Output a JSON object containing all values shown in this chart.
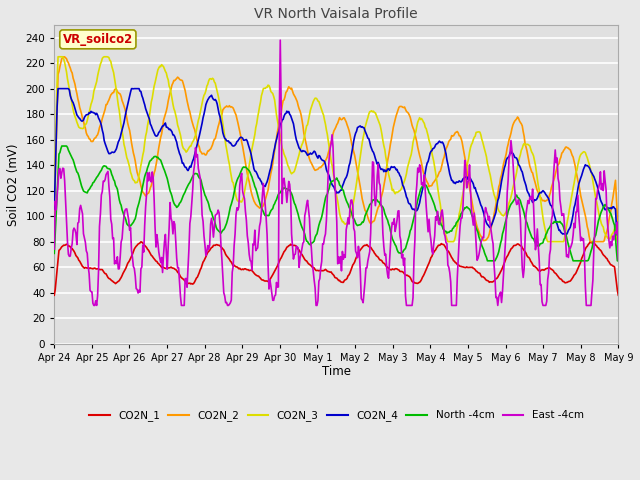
{
  "title": "VR North Vaisala Profile",
  "xlabel": "Time",
  "ylabel": "Soil CO2 (mV)",
  "watermark": "VR_soilco2",
  "ylim": [
    0,
    250
  ],
  "yticks": [
    0,
    20,
    40,
    60,
    80,
    100,
    120,
    140,
    160,
    180,
    200,
    220,
    240
  ],
  "fig_bg": "#e8e8e8",
  "plot_bg": "#e0e0e0",
  "series_colors": {
    "CO2N_1": "#dd0000",
    "CO2N_2": "#ff9900",
    "CO2N_3": "#dddd00",
    "CO2N_4": "#0000cc",
    "North_4cm": "#00bb00",
    "East_4cm": "#cc00cc"
  },
  "x_labels": [
    "Apr 24",
    "Apr 25",
    "Apr 26",
    "Apr 27",
    "Apr 28",
    "Apr 29",
    "Apr 30",
    "May 1",
    "May 2",
    "May 3",
    "May 4",
    "May 5",
    "May 6",
    "May 7",
    "May 8",
    "May 9"
  ],
  "figsize": [
    6.4,
    4.8
  ],
  "dpi": 100
}
